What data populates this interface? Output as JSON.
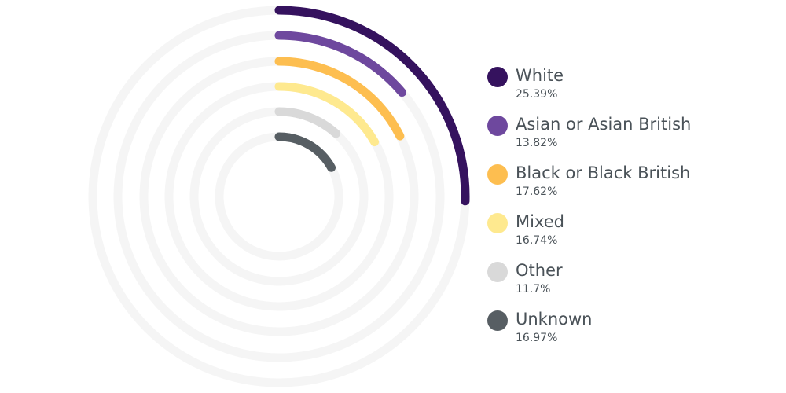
{
  "chart_data": {
    "type": "radial-bar",
    "title": "",
    "categories": [
      "White",
      "Asian or Asian British",
      "Black or Black British",
      "Mixed",
      "Other",
      "Unknown"
    ],
    "values": [
      25.39,
      13.82,
      17.62,
      16.74,
      11.7,
      16.97
    ],
    "value_labels": [
      "25.39%",
      "13.82%",
      "17.62%",
      "16.74%",
      "11.7%",
      "16.97%"
    ],
    "colors": [
      "#35125e",
      "#6e489e",
      "#fdbe50",
      "#fee98f",
      "#d9d9d9",
      "#575e63"
    ],
    "track_color": "#f5f5f5",
    "legend_position": "right"
  }
}
